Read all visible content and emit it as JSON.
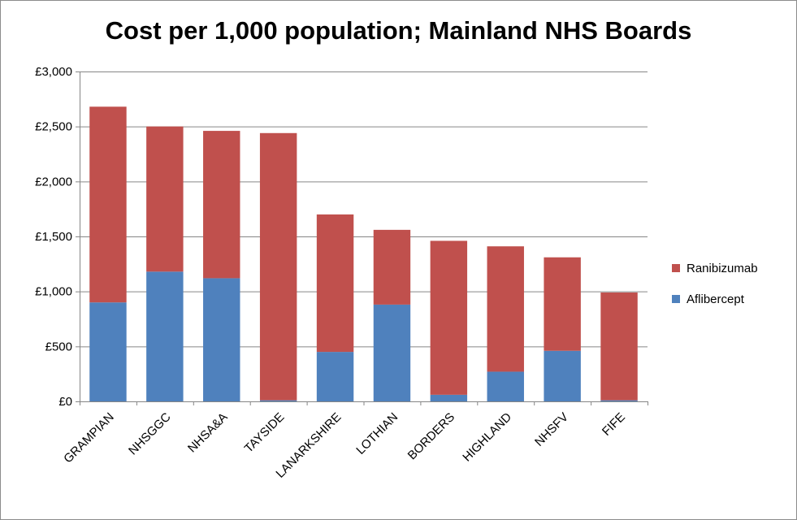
{
  "chart_data": {
    "type": "bar",
    "stacked": true,
    "title": "Cost per 1,000 population; Mainland NHS Boards",
    "xlabel": "",
    "ylabel": "",
    "ylim": [
      0,
      3000
    ],
    "y_ticks": [
      "£0",
      "£500",
      "£1,000",
      "£1,500",
      "£2,000",
      "£2,500",
      "£3,000"
    ],
    "y_tick_values": [
      0,
      500,
      1000,
      1500,
      2000,
      2500,
      3000
    ],
    "grid": true,
    "legend_position": "right",
    "categories": [
      "GRAMPIAN",
      "NHSGGC",
      "NHSA&A",
      "TAYSIDE",
      "LANARKSHIRE",
      "LOTHIAN",
      "BORDERS",
      "HIGHLAND",
      "NHSFV",
      "FIFE"
    ],
    "series": [
      {
        "name": "Aflibercept",
        "color": "#4f81bd",
        "values": [
          900,
          1180,
          1120,
          10,
          450,
          880,
          60,
          270,
          460,
          10
        ]
      },
      {
        "name": "Ranibizumab",
        "color": "#c0504d",
        "values": [
          1780,
          1320,
          1340,
          2430,
          1250,
          680,
          1400,
          1140,
          850,
          980
        ]
      }
    ]
  }
}
